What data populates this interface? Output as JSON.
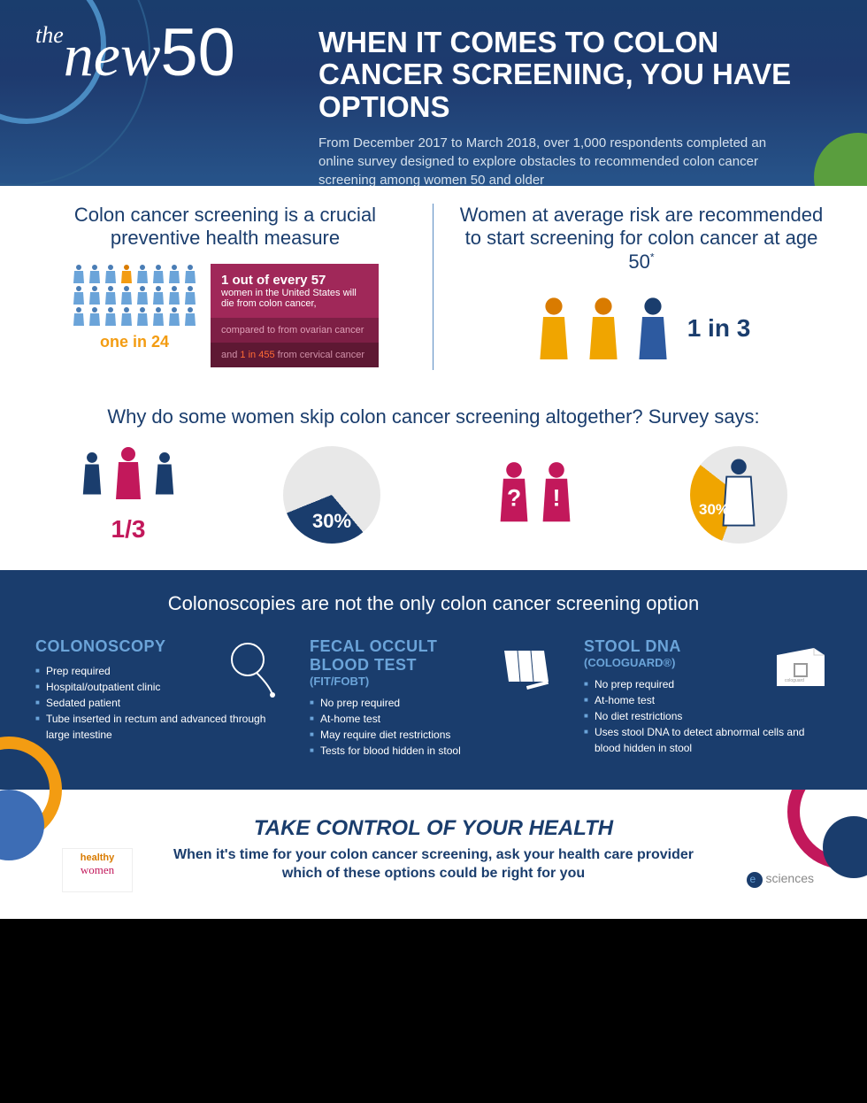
{
  "header": {
    "logo_the": "the",
    "logo_new": "new",
    "logo_50": "50",
    "title": "WHEN IT COMES TO COLON CANCER SCREENING, YOU HAVE OPTIONS",
    "subtitle": "From December 2017 to March 2018, over 1,000 respondents completed an online survey designed to explore obstacles to recommended colon cancer screening among women 50 and older"
  },
  "sec1": {
    "left_h": "Colon cancer screening is a crucial preventive health measure",
    "one24": "one in 24",
    "box1_bold": "1 out of every 57",
    "box1_text": "women in the United States will die from colon cancer,",
    "box2": "compared to from ovarian cancer",
    "box3_a": "and ",
    "box3_b": "1 in 455",
    "box3_c": " from cervical cancer",
    "right_h": "Women at average risk are recommended to start screening for colon cancer at age 50",
    "stat": "1 in 3"
  },
  "sec2": {
    "h": "Why do some women skip colon cancer screening altogether? Survey says:",
    "stat1": "1/3",
    "pie1": "30%",
    "pie2": "30%"
  },
  "sec3": {
    "h": "Colonoscopies are not the only colon cancer screening option",
    "cols": [
      {
        "title": "COLONOSCOPY",
        "sub": "",
        "items": [
          "Prep required",
          "Hospital/outpatient clinic",
          "Sedated patient",
          "Tube inserted in rectum and advanced through large intestine"
        ]
      },
      {
        "title": "FECAL OCCULT BLOOD TEST",
        "sub": "(FIT/FOBT)",
        "items": [
          "No prep required",
          "At-home test",
          "May require diet restrictions",
          "Tests for blood hidden in stool"
        ]
      },
      {
        "title": "STOOL DNA",
        "sub": "(COLOGUARD®)",
        "items": [
          "No prep required",
          "At-home test",
          "No diet restrictions",
          "Uses stool DNA to detect abnormal cells and blood hidden in stool"
        ]
      }
    ]
  },
  "footer": {
    "h": "TAKE CONTROL OF YOUR HEALTH",
    "p": "When it's time for your colon cancer screening, ask your health care provider which of these options could be right for you",
    "hw1": "healthy",
    "hw2": "women",
    "es": "sciences"
  },
  "colors": {
    "navy": "#1a3d6d",
    "blue": "#3d6db5",
    "orange": "#f39c12",
    "magenta": "#c2185b",
    "yellow": "#f0a500",
    "lightblue": "#6ba4d9"
  }
}
